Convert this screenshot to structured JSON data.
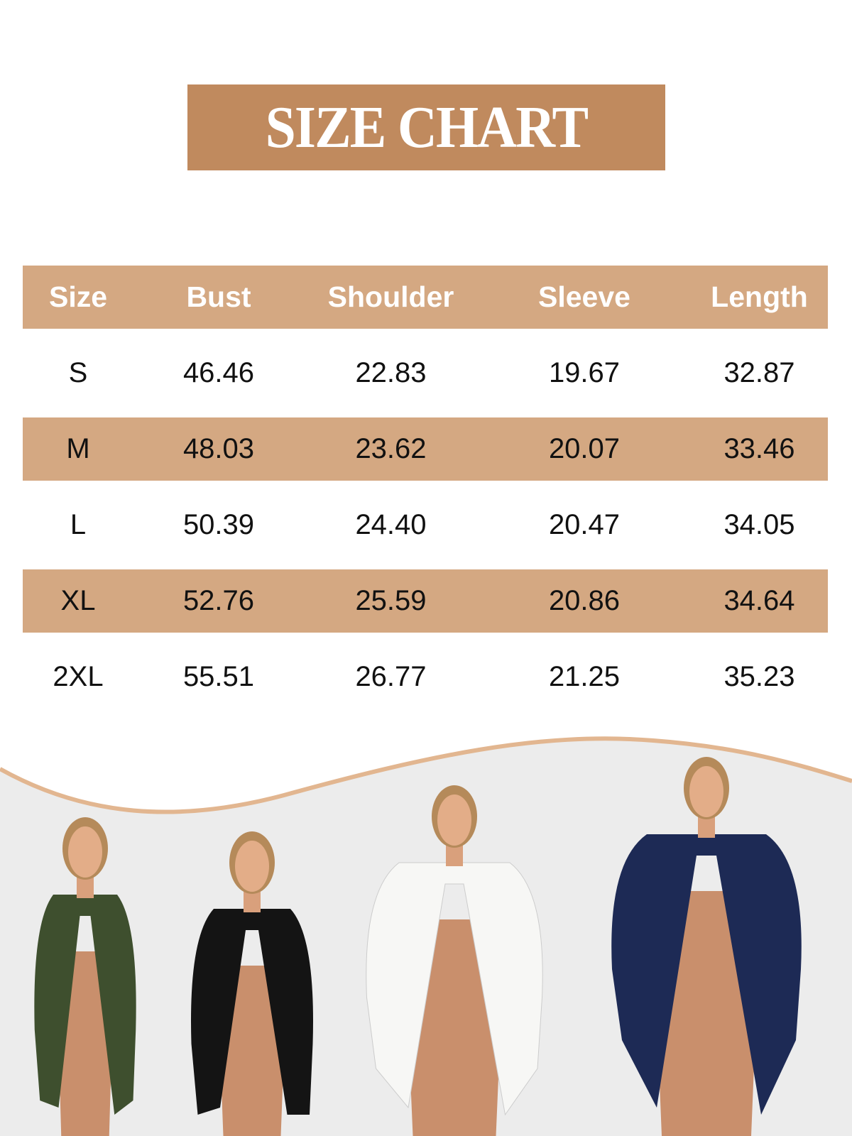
{
  "title": "SIZE CHART",
  "colors": {
    "title_bg": "#c08a5e",
    "header_bg": "#d4a882",
    "wave_line": "#e2b690",
    "photo_bg": "#ececec"
  },
  "table": {
    "headers": [
      "Size",
      "Bust",
      "Shoulder",
      "Sleeve",
      "Length"
    ],
    "rows": [
      [
        "S",
        "46.46",
        "22.83",
        "19.67",
        "32.87"
      ],
      [
        "M",
        "48.03",
        "23.62",
        "20.07",
        "33.46"
      ],
      [
        "L",
        "50.39",
        "24.40",
        "20.47",
        "34.05"
      ],
      [
        "XL",
        "52.76",
        "25.59",
        "20.86",
        "34.64"
      ],
      [
        "2XL",
        "55.51",
        "26.77",
        "21.25",
        "35.23"
      ]
    ]
  },
  "models": [
    {
      "shirt_color": "#3e4f2e"
    },
    {
      "shirt_color": "#141414"
    },
    {
      "shirt_color": "#f7f7f5"
    },
    {
      "shirt_color": "#1d2a55"
    }
  ]
}
